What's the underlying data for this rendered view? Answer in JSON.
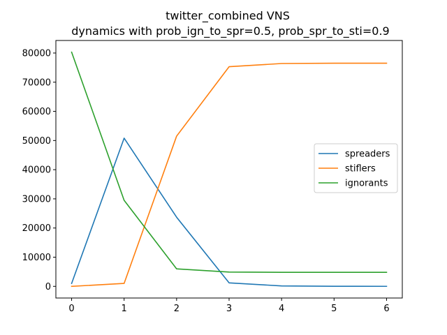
{
  "chart_data": {
    "type": "line",
    "title": "twitter_combined VNS",
    "subtitle": "dynamics with prob_ign_to_spr=0.5, prob_spr_to_sti=0.9",
    "xlabel": "",
    "ylabel": "",
    "x": [
      0,
      1,
      2,
      3,
      4,
      5,
      6
    ],
    "xlim": [
      -0.3,
      6.3
    ],
    "ylim": [
      -4000,
      84300
    ],
    "xticks": [
      0,
      1,
      2,
      3,
      4,
      5,
      6
    ],
    "yticks": [
      0,
      10000,
      20000,
      30000,
      40000,
      50000,
      60000,
      70000,
      80000
    ],
    "grid": false,
    "legend_position": "center-right",
    "series": [
      {
        "name": "spreaders",
        "color": "#1f77b4",
        "values": [
          1000,
          50800,
          23700,
          1200,
          150,
          20,
          10
        ]
      },
      {
        "name": "stiflers",
        "color": "#ff7f0e",
        "values": [
          0,
          1000,
          51500,
          75300,
          76400,
          76500,
          76500
        ]
      },
      {
        "name": "ignorants",
        "color": "#2ca02c",
        "values": [
          80300,
          29500,
          6000,
          4900,
          4800,
          4800,
          4800
        ]
      }
    ]
  }
}
